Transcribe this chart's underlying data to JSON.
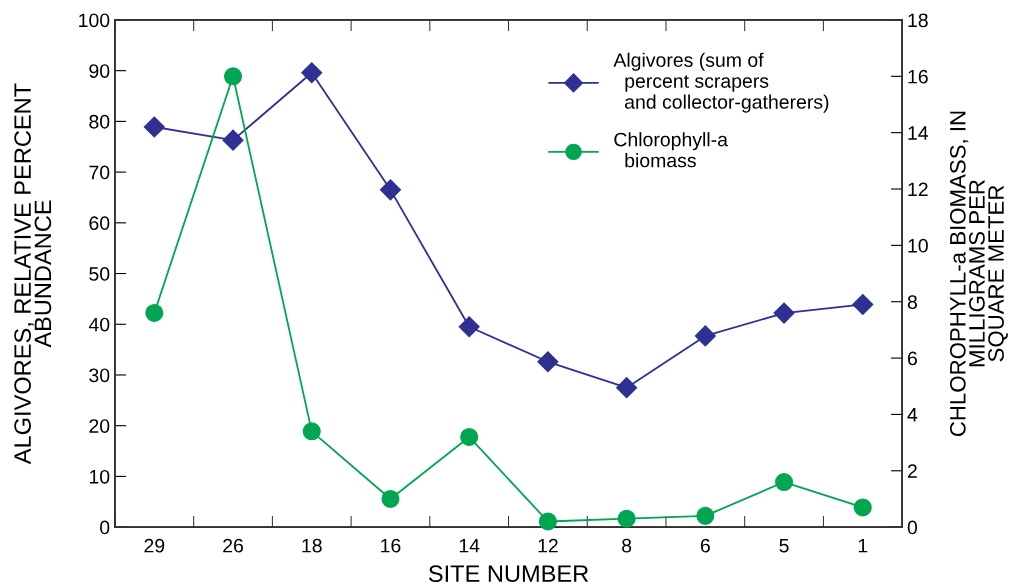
{
  "chart_data": {
    "type": "line",
    "xlabel": "SITE NUMBER",
    "ylabel": "ALGIVORES, RELATIVE PERCENT\nABUNDANCE",
    "y2label": "CHLOROPHYLL-a BIOMASS, IN\nMILLIGRAMS PER\nSQUARE METER",
    "categories": [
      "29",
      "26",
      "18",
      "16",
      "14",
      "12",
      "8",
      "6",
      "5",
      "1"
    ],
    "series": [
      {
        "name": "Algivores (sum of\n  percent scrapers\n  and collector-gatherers)",
        "color": "#2e3192",
        "marker": "diamond",
        "values": [
          78.9,
          76.3,
          89.6,
          66.5,
          39.5,
          32.6,
          27.5,
          37.7,
          42.2,
          43.9
        ]
      },
      {
        "name": "Chlorophyll-a\n  biomass",
        "color": "#00a651",
        "marker": "circle",
        "axis": "y2",
        "values": [
          7.6,
          16.0,
          3.4,
          1.0,
          3.2,
          0.2,
          0.3,
          0.4,
          1.6,
          0.7
        ]
      }
    ],
    "ylim": [
      0,
      100
    ],
    "yticks": [
      0,
      10,
      20,
      30,
      40,
      50,
      60,
      70,
      80,
      90,
      100
    ],
    "y2lim": [
      0,
      18
    ],
    "y2ticks": [
      0,
      2,
      4,
      6,
      8,
      10,
      12,
      14,
      16,
      18
    ],
    "grid": false,
    "legend": "top right",
    "line_style": "solid"
  }
}
